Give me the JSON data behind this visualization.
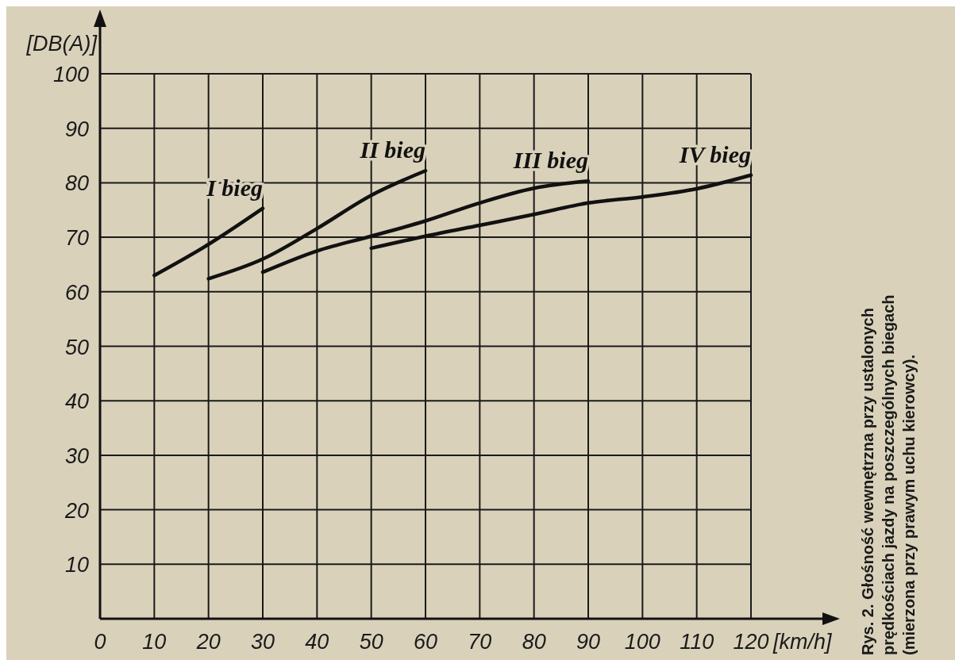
{
  "chart_data": {
    "type": "line",
    "xlabel": "[km/h]",
    "ylabel": "[DB(A)]",
    "annotations": [
      "Rys. 2. Głośność wewnętrzna przy ustalonych prędkościach jazdy na poszczególnych biegach (mierzona przy prawym uchu kierowcy)."
    ],
    "xlim": [
      0,
      120
    ],
    "ylim": [
      0,
      100
    ],
    "xticks": [
      0,
      10,
      20,
      30,
      40,
      50,
      60,
      70,
      80,
      90,
      100,
      110,
      120
    ],
    "yticks": [
      {
        "value": 0,
        "label": null
      },
      10,
      20,
      30,
      40,
      50,
      60,
      70,
      80,
      90,
      100
    ],
    "grid": true,
    "marker": "none",
    "line_style": "solid",
    "series": [
      {
        "name": "I bieg",
        "color": "#111111",
        "x": [
          10,
          20,
          30
        ],
        "values": [
          63,
          68.7,
          75.3
        ]
      },
      {
        "name": "II bieg",
        "color": "#111111",
        "x": [
          20,
          30,
          40,
          50,
          60
        ],
        "values": [
          62.4,
          66,
          71.6,
          77.7,
          82.2
        ]
      },
      {
        "name": "III bieg",
        "color": "#111111",
        "x": [
          30,
          40,
          50,
          60,
          70,
          80,
          90
        ],
        "values": [
          63.6,
          67.5,
          70.2,
          73,
          76.3,
          79,
          80.3
        ]
      },
      {
        "name": "IV bieg",
        "color": "#111111",
        "x": [
          50,
          60,
          70,
          80,
          90,
          100,
          110,
          120
        ],
        "values": [
          68,
          70.2,
          72.2,
          74.2,
          76.3,
          77.4,
          78.9,
          81.4
        ]
      }
    ]
  }
}
